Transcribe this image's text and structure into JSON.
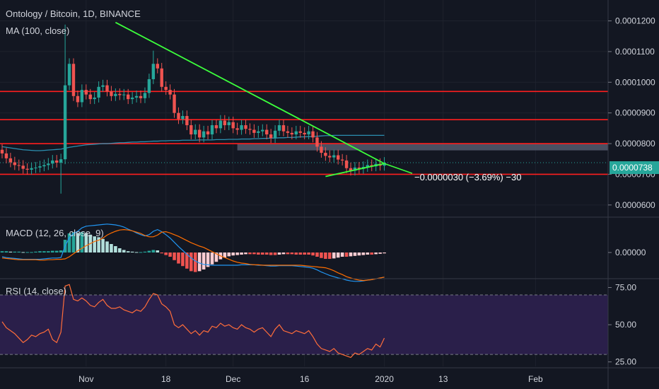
{
  "header": {
    "symbol_title": "Ontology / Bitcoin, 1D, BINANCE",
    "ma_legend": "MA (100, close)",
    "macd_legend": "MACD (12, 26, close, 9)",
    "rsi_legend": "RSI (14, close)"
  },
  "current_price": "0.0000738",
  "measure_label": "−0.0000030 (−3.69%) −30",
  "colors": {
    "background": "#131722",
    "up": "#26a69a",
    "down": "#ef5350",
    "trendline": "#3cff3c",
    "support": "#ff1e1e",
    "ma": "#2c8fb0",
    "macd": "#2196f3",
    "signal": "#ff6d00",
    "rsi": "#ff6d3a",
    "rsi_band": "#2a1f4a"
  },
  "chart_data": [
    {
      "type": "candlestick",
      "title": "Ontology / Bitcoin, 1D, BINANCE",
      "x_ticks": [
        "Nov",
        "18",
        "Dec",
        "16",
        "2020",
        "13",
        "Feb"
      ],
      "y_ticks": [
        "0.0001200",
        "0.0001100",
        "0.0001000",
        "0.0000900",
        "0.0000800",
        "0.0000700",
        "0.0000600"
      ],
      "ylim": [
        5.65e-05,
        0.0001245
      ],
      "horizontal_levels": [
        9.7e-05,
        8.78e-05,
        8e-05,
        7e-05
      ],
      "zone": [
        7.78e-05,
        8e-05
      ],
      "trendlines": [
        {
          "from_day": 27,
          "from_value": 0.0001195,
          "to_day": 91,
          "to_value": 7.35e-05
        },
        {
          "from_day": 77,
          "from_value": 6.93e-05,
          "to_day": 91,
          "to_value": 7.35e-05
        }
      ],
      "closes": [
        7.68e-05,
        7.52e-05,
        7.39e-05,
        7.3e-05,
        7.28e-05,
        7.18e-05,
        7.15e-05,
        7.2e-05,
        7.22e-05,
        7.26e-05,
        7.3e-05,
        7.35e-05,
        7.45e-05,
        7.38e-05,
        7.49e-05,
        9.9e-05,
        0.000106,
        9.55e-05,
        9.35e-05,
        9.75e-05,
        9.6e-05,
        9.45e-05,
        9.5e-05,
        9.85e-05,
        9.9e-05,
        9.7e-05,
        9.55e-05,
        9.62e-05,
        9.58e-05,
        9.6e-05,
        9.45e-05,
        9.5e-05,
        9.55e-05,
        9.48e-05,
        9.65e-05,
        0.000101,
        0.000106,
        0.0001045,
        9.85e-05,
        9.75e-05,
        9.6e-05,
        9e-05,
        8.8e-05,
        8.9e-05,
        8.6e-05,
        8.3e-05,
        8.45e-05,
        8.2e-05,
        8.4e-05,
        8.3e-05,
        8.6e-05,
        8.5e-05,
        8.75e-05,
        8.6e-05,
        8.7e-05,
        8.5e-05,
        8.45e-05,
        8.6e-05,
        8.48e-05,
        8.45e-05,
        8.35e-05,
        8.4e-05,
        8.45e-05,
        8.3e-05,
        8.18e-05,
        8.42e-05,
        8.6e-05,
        8.4e-05,
        8.35e-05,
        8.3e-05,
        8.4e-05,
        8.35e-05,
        8.3e-05,
        8.4e-05,
        8.2e-05,
        7.9e-05,
        7.7e-05,
        7.6e-05,
        7.55e-05,
        7.62e-05,
        7.48e-05,
        7.45e-05,
        7.2e-05,
        7.12e-05,
        7.22e-05,
        7.18e-05,
        7.24e-05,
        7.3e-05,
        7.26e-05,
        7.34e-05,
        7.28e-05,
        7.38e-05
      ],
      "ma100": [
        7.9e-05,
        7.88e-05,
        7.86e-05,
        7.84e-05,
        7.82e-05,
        7.8e-05,
        7.79e-05,
        7.78e-05,
        7.77e-05,
        7.77e-05,
        7.78e-05,
        7.79e-05,
        7.8e-05,
        7.81e-05,
        7.82e-05,
        7.85e-05,
        7.88e-05,
        7.9e-05,
        7.92e-05,
        7.94e-05,
        7.96e-05,
        7.97e-05,
        7.98e-05,
        7.99e-05,
        8e-05,
        8e-05,
        8.01e-05,
        8.02e-05,
        8.03e-05,
        8.03e-05,
        8.04e-05,
        8.05e-05,
        8.05e-05,
        8.06e-05,
        8.06e-05,
        8.07e-05,
        8.08e-05,
        8.08e-05,
        8.09e-05,
        8.09e-05,
        8.1e-05,
        8.1e-05,
        8.1e-05,
        8.11e-05,
        8.11e-05,
        8.11e-05,
        8.11e-05,
        8.12e-05,
        8.12e-05,
        8.12e-05,
        8.12e-05,
        8.13e-05,
        8.13e-05,
        8.13e-05,
        8.14e-05,
        8.14e-05,
        8.14e-05,
        8.15e-05,
        8.15e-05,
        8.15e-05,
        8.16e-05,
        8.16e-05,
        8.17e-05,
        8.17e-05,
        8.18e-05,
        8.18e-05,
        8.19e-05,
        8.19e-05,
        8.2e-05,
        8.2e-05,
        8.21e-05,
        8.22e-05,
        8.22e-05,
        8.23e-05,
        8.23e-05,
        8.24e-05,
        8.25e-05,
        8.26e-05,
        8.26e-05,
        8.27e-05,
        8.27e-05,
        8.27e-05,
        8.27e-05,
        8.27e-05,
        8.27e-05,
        8.27e-05,
        8.27e-05,
        8.27e-05,
        8.27e-05,
        8.27e-05,
        8.27e-05,
        8.27e-05
      ]
    },
    {
      "type": "bar",
      "title": "MACD (12, 26, close, 9)",
      "y_ticks": [
        "0.00000"
      ],
      "histogram": [
        0.3,
        0.3,
        0.2,
        0.2,
        0.2,
        0.1,
        0.1,
        0.1,
        0.2,
        0.3,
        0.3,
        0.3,
        0.4,
        0.4,
        0.5,
        3.0,
        4.5,
        4.8,
        4.6,
        4.8,
        4.6,
        4.2,
        3.8,
        3.6,
        3.2,
        2.6,
        2.0,
        1.5,
        1.0,
        0.6,
        0.3,
        0.2,
        0.1,
        0.1,
        0.2,
        0.4,
        0.6,
        0.5,
        -0.2,
        -0.6,
        -1.0,
        -1.8,
        -2.6,
        -3.2,
        -3.8,
        -4.4,
        -4.6,
        -4.4,
        -4.0,
        -3.4,
        -2.8,
        -2.2,
        -1.6,
        -1.2,
        -0.9,
        -0.7,
        -0.6,
        -0.5,
        -0.4,
        -0.4,
        -0.4,
        -0.5,
        -0.5,
        -0.5,
        -0.6,
        -0.6,
        -0.5,
        -0.4,
        -0.4,
        -0.4,
        -0.5,
        -0.5,
        -0.5,
        -0.5,
        -0.7,
        -1.0,
        -1.3,
        -1.5,
        -1.5,
        -1.4,
        -1.2,
        -1.0,
        -1.0,
        -0.9,
        -0.8,
        -0.7,
        -0.6,
        -0.5,
        -0.5,
        -0.4,
        -0.3,
        -0.2
      ],
      "macd": [
        -1.0,
        -1.2,
        -1.3,
        -1.4,
        -1.5,
        -1.6,
        -1.6,
        -1.6,
        -1.6,
        -1.6,
        -1.5,
        -1.4,
        -1.3,
        -1.3,
        -1.2,
        1.5,
        3.5,
        4.5,
        5.0,
        5.8,
        6.2,
        6.3,
        6.4,
        6.5,
        6.6,
        6.7,
        6.6,
        6.5,
        6.3,
        6.0,
        5.5,
        5.1,
        4.6,
        4.2,
        3.9,
        4.2,
        5.0,
        5.4,
        4.9,
        4.2,
        3.4,
        2.4,
        1.4,
        0.5,
        -0.4,
        -1.3,
        -2.0,
        -2.5,
        -2.8,
        -2.9,
        -3.0,
        -3.0,
        -3.0,
        -3.0,
        -3.0,
        -3.0,
        -3.0,
        -2.9,
        -2.9,
        -2.9,
        -2.9,
        -3.0,
        -3.0,
        -3.1,
        -3.2,
        -3.2,
        -3.1,
        -3.1,
        -3.1,
        -3.1,
        -3.2,
        -3.3,
        -3.4,
        -3.5,
        -3.7,
        -4.1,
        -4.6,
        -5.0,
        -5.4,
        -5.7,
        -6.0,
        -6.2,
        -6.5,
        -6.7,
        -6.8,
        -6.8,
        -6.7,
        -6.5,
        -6.4,
        -6.2,
        -6.0,
        -5.8
      ],
      "signal": [
        -1.3,
        -1.4,
        -1.5,
        -1.6,
        -1.7,
        -1.7,
        -1.7,
        -1.7,
        -1.7,
        -1.8,
        -1.8,
        -1.7,
        -1.7,
        -1.6,
        -1.6,
        -1.5,
        -1.0,
        -0.3,
        0.4,
        1.0,
        1.6,
        2.1,
        2.6,
        2.9,
        3.4,
        4.1,
        4.6,
        5.0,
        5.3,
        5.4,
        5.3,
        5.1,
        4.8,
        4.5,
        4.0,
        3.7,
        3.7,
        4.1,
        4.8,
        4.9,
        4.6,
        4.2,
        3.8,
        3.3,
        2.8,
        2.3,
        1.9,
        1.5,
        1.2,
        0.7,
        0.2,
        -0.3,
        -0.8,
        -1.2,
        -1.6,
        -2.0,
        -2.3,
        -2.5,
        -2.6,
        -2.8,
        -2.9,
        -2.9,
        -3.0,
        -3.0,
        -3.0,
        -3.0,
        -3.0,
        -3.0,
        -3.0,
        -3.0,
        -3.0,
        -3.0,
        -3.1,
        -3.2,
        -3.3,
        -3.4,
        -3.5,
        -3.6,
        -3.9,
        -4.3,
        -4.8,
        -5.2,
        -5.7,
        -6.0,
        -6.3,
        -6.5,
        -6.6,
        -6.5,
        -6.4,
        -6.2,
        -6.0,
        -5.8
      ]
    },
    {
      "type": "line",
      "title": "RSI (14, close)",
      "y_ticks": [
        "75.00",
        "50.00",
        "25.00"
      ],
      "ylim": [
        22,
        80
      ],
      "bands": [
        70,
        30
      ],
      "values": [
        52,
        48,
        46,
        44,
        41,
        38,
        40,
        43,
        42,
        44,
        45,
        47,
        40,
        38,
        45,
        76,
        77,
        67,
        66,
        68,
        66,
        63,
        62,
        65,
        67,
        63,
        61,
        61,
        62,
        60,
        59,
        58,
        60,
        59,
        62,
        67,
        71,
        70,
        64,
        62,
        59,
        50,
        48,
        50,
        47,
        44,
        46,
        43,
        46,
        45,
        49,
        48,
        51,
        49,
        50,
        48,
        47,
        50,
        48,
        47,
        45,
        47,
        48,
        45,
        42,
        47,
        50,
        46,
        45,
        44,
        46,
        45,
        44,
        46,
        42,
        37,
        34,
        33,
        32,
        34,
        31,
        30,
        29,
        28,
        31,
        30,
        32,
        34,
        33,
        37,
        35,
        41
      ]
    }
  ]
}
